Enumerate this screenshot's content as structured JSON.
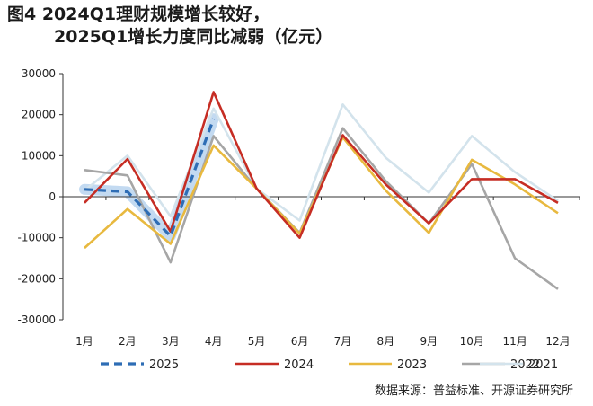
{
  "title": {
    "line1": "图4  2024Q1理财规模增长较好，",
    "line2": "2025Q1增长力度同比减弱（亿元）"
  },
  "source": "数据来源：普益标准、开源证券研究所",
  "chart_data": {
    "type": "line",
    "categories": [
      "1月",
      "2月",
      "3月",
      "4月",
      "5月",
      "6月",
      "7月",
      "8月",
      "9月",
      "10月",
      "11月",
      "12月"
    ],
    "ylim": [
      -30000,
      30000
    ],
    "yticks": [
      30000,
      20000,
      10000,
      0,
      -10000,
      -20000,
      -30000
    ],
    "ytick_labels": [
      "30000",
      "20000",
      "10000",
      "0",
      "-10000",
      "-20000",
      "-30000"
    ],
    "grid": false,
    "legend_position": "bottom",
    "series": [
      {
        "name": "2025",
        "color": "#2e6db5",
        "dashed": true,
        "values": [
          1800,
          1200,
          -9600,
          19000,
          null,
          null,
          null,
          null,
          null,
          null,
          null,
          null
        ]
      },
      {
        "name": "2024",
        "color": "#c62d24",
        "dashed": false,
        "values": [
          -1500,
          9200,
          -8500,
          25500,
          2000,
          -10000,
          15000,
          3000,
          -6500,
          4300,
          4300,
          -1500
        ]
      },
      {
        "name": "2023",
        "color": "#e8b93f",
        "dashed": false,
        "values": [
          -12500,
          -3000,
          -11500,
          12500,
          2000,
          -9000,
          14500,
          1500,
          -8800,
          9000,
          3000,
          -4000
        ]
      },
      {
        "name": "2022",
        "color": "#a6a6a6",
        "dashed": false,
        "values": [
          6500,
          5200,
          -16000,
          14800,
          2000,
          -8800,
          16700,
          3800,
          -6500,
          8000,
          -15000,
          -22500
        ]
      },
      {
        "name": "2021",
        "color": "#d3e3ec",
        "dashed": false,
        "values": [
          1500,
          10000,
          -4800,
          21500,
          2000,
          -5800,
          22500,
          9500,
          1000,
          14800,
          6000,
          -1000
        ]
      }
    ]
  }
}
